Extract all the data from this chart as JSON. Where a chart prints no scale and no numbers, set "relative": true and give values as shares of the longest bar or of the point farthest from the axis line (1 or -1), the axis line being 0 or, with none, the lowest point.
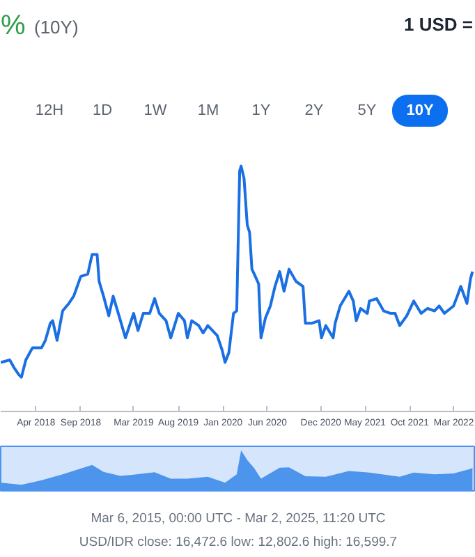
{
  "chart_data": [
    {
      "type": "other",
      "annotations": [
        "% (10Y)",
        "1 USD =",
        "12H",
        "1D",
        "1W",
        "1M",
        "1Y",
        "2Y",
        "5Y",
        "10Y"
      ]
    },
    {
      "type": "line",
      "relative": true,
      "xlim": [
        "2017-12-01",
        "2022-05-15"
      ],
      "xticks": [
        {
          "value": "2018-04-01",
          "label": "Apr 2018"
        },
        {
          "value": "2018-09-01",
          "label": "Sep 2018"
        },
        {
          "value": "2019-03-01",
          "label": "Mar 2019"
        },
        {
          "value": "2019-08-01",
          "label": "Aug 2019"
        },
        {
          "value": "2020-01-01",
          "label": "Jan 2020"
        },
        {
          "value": "2020-06-01",
          "label": "Jun 2020"
        },
        {
          "value": "2020-12-01",
          "label": "Dec 2020"
        },
        {
          "value": "2021-05-01",
          "label": "May 2021"
        },
        {
          "value": "2021-10-01",
          "label": "Oct 2021"
        },
        {
          "value": "2022-03-01",
          "label": "Mar 2022"
        }
      ],
      "x": [
        "2017-12-01",
        "2018-01-01",
        "2018-01-15",
        "2018-02-01",
        "2018-02-10",
        "2018-02-25",
        "2018-03-20",
        "2018-04-20",
        "2018-05-03",
        "2018-05-20",
        "2018-05-28",
        "2018-06-12",
        "2018-07-01",
        "2018-07-22",
        "2018-08-08",
        "2018-09-01",
        "2018-09-25",
        "2018-10-10",
        "2018-10-27",
        "2018-11-03",
        "2018-11-18",
        "2018-12-06",
        "2018-12-21",
        "2019-01-15",
        "2019-02-01",
        "2019-02-15",
        "2019-03-01",
        "2019-03-16",
        "2019-04-03",
        "2019-04-25",
        "2019-05-12",
        "2019-05-28",
        "2019-06-20",
        "2019-07-06",
        "2019-08-01",
        "2019-08-22",
        "2019-09-01",
        "2019-09-16",
        "2019-10-10",
        "2019-10-25",
        "2019-11-10",
        "2019-12-12",
        "2019-12-29",
        "2020-01-08",
        "2020-01-21",
        "2020-02-06",
        "2020-02-17",
        "2020-02-27",
        "2020-03-03",
        "2020-03-13",
        "2020-03-24",
        "2020-04-01",
        "2020-04-09",
        "2020-04-17",
        "2020-05-02",
        "2020-05-10",
        "2020-05-25",
        "2020-06-11",
        "2020-06-27",
        "2020-07-13",
        "2020-07-28",
        "2020-08-14",
        "2020-09-07",
        "2020-10-01",
        "2020-10-09",
        "2020-11-01",
        "2020-11-25",
        "2020-12-03",
        "2020-12-18",
        "2021-01-12",
        "2021-01-19",
        "2021-02-05",
        "2021-03-07",
        "2021-03-22",
        "2021-04-01",
        "2021-04-16",
        "2021-05-09",
        "2021-05-16",
        "2021-06-10",
        "2021-07-04",
        "2021-07-28",
        "2021-08-12",
        "2021-08-28",
        "2021-09-21",
        "2021-10-15",
        "2021-11-09",
        "2021-12-01",
        "2021-12-25",
        "2022-01-10",
        "2022-01-28",
        "2022-02-28",
        "2022-03-13",
        "2022-03-25",
        "2022-04-15",
        "2022-04-27",
        "2022-05-04"
      ],
      "series": [
        {
          "color": "#1a6fe3",
          "values": [
            0.2,
            0.21,
            0.18,
            0.15,
            0.14,
            0.21,
            0.26,
            0.26,
            0.29,
            0.36,
            0.37,
            0.29,
            0.41,
            0.44,
            0.47,
            0.55,
            0.56,
            0.64,
            0.64,
            0.53,
            0.47,
            0.39,
            0.47,
            0.37,
            0.3,
            0.35,
            0.4,
            0.33,
            0.4,
            0.4,
            0.46,
            0.4,
            0.37,
            0.3,
            0.4,
            0.37,
            0.3,
            0.37,
            0.35,
            0.32,
            0.35,
            0.31,
            0.25,
            0.2,
            0.24,
            0.4,
            0.41,
            0.98,
            1.0,
            0.95,
            0.76,
            0.73,
            0.58,
            0.56,
            0.52,
            0.3,
            0.38,
            0.43,
            0.51,
            0.57,
            0.49,
            0.58,
            0.53,
            0.51,
            0.36,
            0.36,
            0.37,
            0.3,
            0.35,
            0.3,
            0.36,
            0.43,
            0.49,
            0.45,
            0.37,
            0.42,
            0.4,
            0.45,
            0.46,
            0.41,
            0.4,
            0.4,
            0.35,
            0.39,
            0.45,
            0.4,
            0.42,
            0.41,
            0.43,
            0.4,
            0.43,
            0.47,
            0.51,
            0.44,
            0.54,
            0.57
          ]
        }
      ]
    },
    {
      "type": "area",
      "relative": true,
      "xlim": [
        "2017-12-01",
        "2022-05-15"
      ],
      "x": [
        "2017-12-01",
        "2018-02-10",
        "2018-04-20",
        "2018-07-01",
        "2018-09-01",
        "2018-10-10",
        "2018-11-18",
        "2019-01-15",
        "2019-03-01",
        "2019-05-12",
        "2019-07-06",
        "2019-09-01",
        "2019-11-10",
        "2020-01-08",
        "2020-02-17",
        "2020-03-03",
        "2020-03-24",
        "2020-04-17",
        "2020-05-10",
        "2020-07-13",
        "2020-08-14",
        "2020-10-09",
        "2020-12-18",
        "2021-03-07",
        "2021-05-16",
        "2021-08-28",
        "2021-10-15",
        "2021-12-25",
        "2022-02-28",
        "2022-04-27",
        "2022-05-04"
      ],
      "series": [
        {
          "color": "#4d94ec",
          "values": [
            0.2,
            0.15,
            0.26,
            0.41,
            0.55,
            0.64,
            0.47,
            0.37,
            0.4,
            0.46,
            0.3,
            0.3,
            0.35,
            0.2,
            0.41,
            1.0,
            0.76,
            0.56,
            0.3,
            0.57,
            0.58,
            0.36,
            0.35,
            0.49,
            0.45,
            0.35,
            0.45,
            0.41,
            0.43,
            0.54,
            0.57
          ]
        }
      ],
      "annotations": [
        "Mar 6, 2015, 00:00 UTC - Mar 2, 2025, 11:20 UTC",
        "USD/IDR close: 16,472.6 low: 12,802.6 high: 16,599.7"
      ]
    }
  ]
}
